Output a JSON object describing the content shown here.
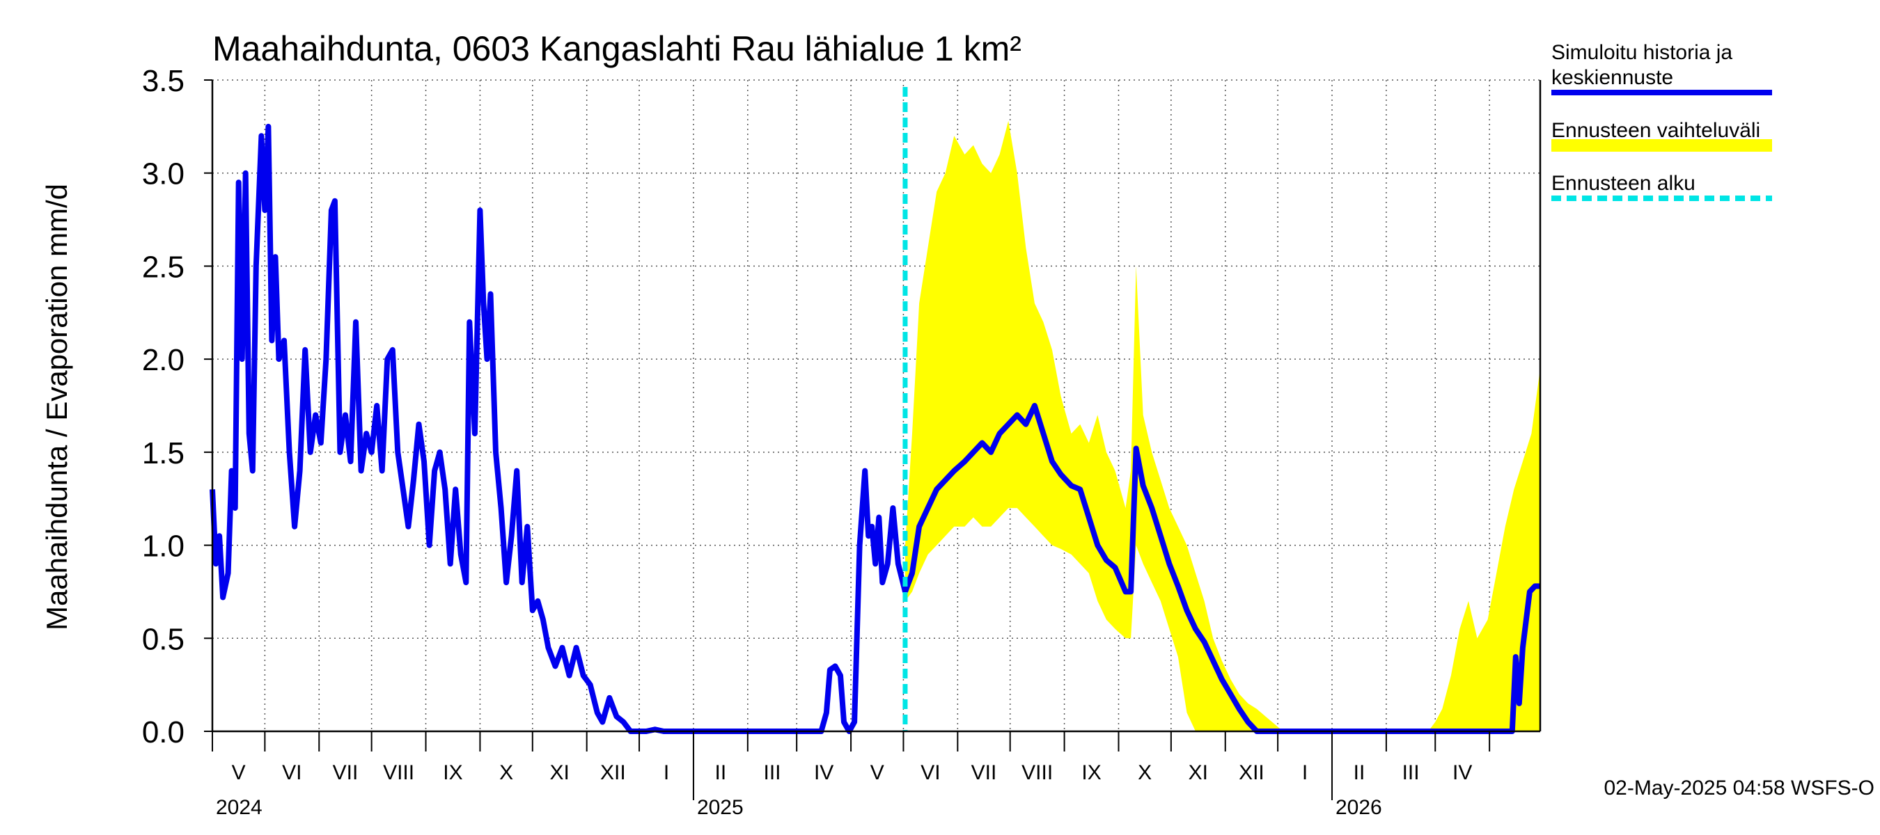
{
  "chart_data": {
    "type": "line",
    "title": "Maahaihdunta, 0603 Kangaslahti Rau lähialue 1 km²",
    "ylabel": "Maahaihdunta / Evaporation   mm/d",
    "ylim": [
      0,
      3.5
    ],
    "yticks": [
      "0.0",
      "0.5",
      "1.0",
      "1.5",
      "2.0",
      "2.5",
      "3.0",
      "3.5"
    ],
    "x_range": [
      "2024-04-01",
      "2026-04-30"
    ],
    "forecast_start": "2025-05-02",
    "months": [
      "V",
      "VI",
      "VII",
      "VIII",
      "IX",
      "X",
      "XI",
      "XII",
      "I",
      "II",
      "III",
      "IV",
      "V",
      "VI",
      "VII",
      "VIII",
      "IX",
      "X",
      "XI",
      "XII",
      "I",
      "II",
      "III",
      "IV"
    ],
    "years": [
      {
        "label": "2024",
        "date": "2024-04-01"
      },
      {
        "label": "2025",
        "date": "2025-01-01"
      },
      {
        "label": "2026",
        "date": "2026-01-01"
      }
    ],
    "legend": [
      {
        "label": "Simuloitu historia ja keskiennuste",
        "lines": [
          "Simuloitu historia ja",
          "keskiennuste"
        ],
        "color": "#0000ee",
        "style": "solid"
      },
      {
        "label": "Ennusteen vaihteluväli",
        "lines": [
          "Ennusteen vaihteluväli"
        ],
        "color": "#ffff00",
        "style": "band"
      },
      {
        "label": "Ennusteen alku",
        "lines": [
          "Ennusteen alku"
        ],
        "color": "#00e5e5",
        "style": "dashed"
      }
    ],
    "footer": "02-May-2025 04:58 WSFS-O",
    "series": [
      {
        "name": "Simuloitu historia ja keskiennuste",
        "points": [
          [
            "2024-04-01",
            1.3
          ],
          [
            "2024-04-03",
            0.9
          ],
          [
            "2024-04-05",
            1.05
          ],
          [
            "2024-04-07",
            0.72
          ],
          [
            "2024-04-10",
            0.85
          ],
          [
            "2024-04-12",
            1.4
          ],
          [
            "2024-04-14",
            1.2
          ],
          [
            "2024-04-16",
            2.95
          ],
          [
            "2024-04-18",
            2.0
          ],
          [
            "2024-04-20",
            3.0
          ],
          [
            "2024-04-22",
            1.6
          ],
          [
            "2024-04-24",
            1.4
          ],
          [
            "2024-04-26",
            2.5
          ],
          [
            "2024-04-29",
            3.2
          ],
          [
            "2024-05-01",
            2.8
          ],
          [
            "2024-05-03",
            3.25
          ],
          [
            "2024-05-05",
            2.1
          ],
          [
            "2024-05-07",
            2.55
          ],
          [
            "2024-05-09",
            2.0
          ],
          [
            "2024-05-12",
            2.1
          ],
          [
            "2024-05-15",
            1.5
          ],
          [
            "2024-05-18",
            1.1
          ],
          [
            "2024-05-21",
            1.4
          ],
          [
            "2024-05-24",
            2.05
          ],
          [
            "2024-05-27",
            1.5
          ],
          [
            "2024-05-30",
            1.7
          ],
          [
            "2024-06-02",
            1.55
          ],
          [
            "2024-06-05",
            2.0
          ],
          [
            "2024-06-08",
            2.8
          ],
          [
            "2024-06-10",
            2.85
          ],
          [
            "2024-06-13",
            1.5
          ],
          [
            "2024-06-16",
            1.7
          ],
          [
            "2024-06-19",
            1.45
          ],
          [
            "2024-06-22",
            2.2
          ],
          [
            "2024-06-25",
            1.4
          ],
          [
            "2024-06-28",
            1.6
          ],
          [
            "2024-07-01",
            1.5
          ],
          [
            "2024-07-04",
            1.75
          ],
          [
            "2024-07-07",
            1.4
          ],
          [
            "2024-07-10",
            2.0
          ],
          [
            "2024-07-13",
            2.05
          ],
          [
            "2024-07-16",
            1.5
          ],
          [
            "2024-07-19",
            1.3
          ],
          [
            "2024-07-22",
            1.1
          ],
          [
            "2024-07-25",
            1.35
          ],
          [
            "2024-07-28",
            1.65
          ],
          [
            "2024-07-31",
            1.45
          ],
          [
            "2024-08-03",
            1.0
          ],
          [
            "2024-08-06",
            1.4
          ],
          [
            "2024-08-09",
            1.5
          ],
          [
            "2024-08-12",
            1.3
          ],
          [
            "2024-08-15",
            0.9
          ],
          [
            "2024-08-18",
            1.3
          ],
          [
            "2024-08-21",
            0.95
          ],
          [
            "2024-08-24",
            0.8
          ],
          [
            "2024-08-26",
            2.2
          ],
          [
            "2024-08-29",
            1.6
          ],
          [
            "2024-09-01",
            2.8
          ],
          [
            "2024-09-03",
            2.3
          ],
          [
            "2024-09-05",
            2.0
          ],
          [
            "2024-09-07",
            2.35
          ],
          [
            "2024-09-10",
            1.5
          ],
          [
            "2024-09-13",
            1.2
          ],
          [
            "2024-09-16",
            0.8
          ],
          [
            "2024-09-19",
            1.05
          ],
          [
            "2024-09-22",
            1.4
          ],
          [
            "2024-09-25",
            0.8
          ],
          [
            "2024-09-28",
            1.1
          ],
          [
            "2024-10-01",
            0.65
          ],
          [
            "2024-10-04",
            0.7
          ],
          [
            "2024-10-07",
            0.6
          ],
          [
            "2024-10-10",
            0.45
          ],
          [
            "2024-10-14",
            0.35
          ],
          [
            "2024-10-18",
            0.45
          ],
          [
            "2024-10-22",
            0.3
          ],
          [
            "2024-10-26",
            0.45
          ],
          [
            "2024-10-30",
            0.3
          ],
          [
            "2024-11-03",
            0.25
          ],
          [
            "2024-11-07",
            0.1
          ],
          [
            "2024-11-10",
            0.05
          ],
          [
            "2024-11-14",
            0.18
          ],
          [
            "2024-11-18",
            0.08
          ],
          [
            "2024-11-22",
            0.05
          ],
          [
            "2024-11-26",
            0.0
          ],
          [
            "2024-12-05",
            0.0
          ],
          [
            "2024-12-10",
            0.01
          ],
          [
            "2024-12-15",
            0.0
          ],
          [
            "2025-03-10",
            0.0
          ],
          [
            "2025-03-15",
            0.0
          ],
          [
            "2025-03-18",
            0.1
          ],
          [
            "2025-03-20",
            0.33
          ],
          [
            "2025-03-23",
            0.35
          ],
          [
            "2025-03-26",
            0.3
          ],
          [
            "2025-03-28",
            0.05
          ],
          [
            "2025-03-31",
            0.0
          ],
          [
            "2025-04-03",
            0.05
          ],
          [
            "2025-04-06",
            1.0
          ],
          [
            "2025-04-09",
            1.4
          ],
          [
            "2025-04-11",
            1.05
          ],
          [
            "2025-04-13",
            1.1
          ],
          [
            "2025-04-15",
            0.9
          ],
          [
            "2025-04-17",
            1.15
          ],
          [
            "2025-04-19",
            0.8
          ],
          [
            "2025-04-22",
            0.9
          ],
          [
            "2025-04-25",
            1.2
          ],
          [
            "2025-04-28",
            0.9
          ],
          [
            "2025-05-02",
            0.75
          ],
          [
            "2025-05-06",
            0.85
          ],
          [
            "2025-05-10",
            1.1
          ],
          [
            "2025-05-15",
            1.2
          ],
          [
            "2025-05-20",
            1.3
          ],
          [
            "2025-05-25",
            1.35
          ],
          [
            "2025-05-30",
            1.4
          ],
          [
            "2025-06-05",
            1.45
          ],
          [
            "2025-06-10",
            1.5
          ],
          [
            "2025-06-15",
            1.55
          ],
          [
            "2025-06-20",
            1.5
          ],
          [
            "2025-06-25",
            1.6
          ],
          [
            "2025-06-30",
            1.65
          ],
          [
            "2025-07-05",
            1.7
          ],
          [
            "2025-07-10",
            1.65
          ],
          [
            "2025-07-15",
            1.75
          ],
          [
            "2025-07-20",
            1.6
          ],
          [
            "2025-07-25",
            1.45
          ],
          [
            "2025-07-30",
            1.38
          ],
          [
            "2025-08-05",
            1.32
          ],
          [
            "2025-08-10",
            1.3
          ],
          [
            "2025-08-15",
            1.15
          ],
          [
            "2025-08-20",
            1.0
          ],
          [
            "2025-08-25",
            0.92
          ],
          [
            "2025-08-30",
            0.88
          ],
          [
            "2025-09-05",
            0.75
          ],
          [
            "2025-09-08",
            0.75
          ],
          [
            "2025-09-11",
            1.52
          ],
          [
            "2025-09-15",
            1.32
          ],
          [
            "2025-09-20",
            1.2
          ],
          [
            "2025-09-25",
            1.05
          ],
          [
            "2025-09-30",
            0.9
          ],
          [
            "2025-10-05",
            0.78
          ],
          [
            "2025-10-10",
            0.65
          ],
          [
            "2025-10-15",
            0.55
          ],
          [
            "2025-10-20",
            0.48
          ],
          [
            "2025-10-25",
            0.38
          ],
          [
            "2025-10-30",
            0.28
          ],
          [
            "2025-11-04",
            0.2
          ],
          [
            "2025-11-09",
            0.12
          ],
          [
            "2025-11-14",
            0.05
          ],
          [
            "2025-11-19",
            0.0
          ],
          [
            "2026-04-14",
            0.0
          ],
          [
            "2026-04-16",
            0.4
          ],
          [
            "2026-04-18",
            0.15
          ],
          [
            "2026-04-20",
            0.45
          ],
          [
            "2026-04-22",
            0.6
          ],
          [
            "2026-04-24",
            0.75
          ],
          [
            "2026-04-27",
            0.78
          ],
          [
            "2026-04-30",
            0.78
          ]
        ]
      },
      {
        "name": "Ennusteen vaihteluväli",
        "band": [
          [
            "2025-05-02",
            0.7,
            1.0
          ],
          [
            "2025-05-06",
            0.75,
            1.6
          ],
          [
            "2025-05-10",
            0.85,
            2.3
          ],
          [
            "2025-05-15",
            0.95,
            2.6
          ],
          [
            "2025-05-20",
            1.0,
            2.9
          ],
          [
            "2025-05-25",
            1.05,
            3.0
          ],
          [
            "2025-05-30",
            1.1,
            3.2
          ],
          [
            "2025-06-05",
            1.1,
            3.1
          ],
          [
            "2025-06-10",
            1.15,
            3.15
          ],
          [
            "2025-06-15",
            1.1,
            3.05
          ],
          [
            "2025-06-20",
            1.1,
            3.0
          ],
          [
            "2025-06-25",
            1.15,
            3.1
          ],
          [
            "2025-06-30",
            1.2,
            3.28
          ],
          [
            "2025-07-05",
            1.2,
            3.0
          ],
          [
            "2025-07-10",
            1.15,
            2.6
          ],
          [
            "2025-07-15",
            1.1,
            2.3
          ],
          [
            "2025-07-20",
            1.05,
            2.2
          ],
          [
            "2025-07-25",
            1.0,
            2.05
          ],
          [
            "2025-07-30",
            0.98,
            1.8
          ],
          [
            "2025-08-05",
            0.95,
            1.6
          ],
          [
            "2025-08-10",
            0.9,
            1.65
          ],
          [
            "2025-08-15",
            0.85,
            1.55
          ],
          [
            "2025-08-20",
            0.7,
            1.7
          ],
          [
            "2025-08-25",
            0.6,
            1.5
          ],
          [
            "2025-08-30",
            0.55,
            1.4
          ],
          [
            "2025-09-05",
            0.5,
            1.2
          ],
          [
            "2025-09-08",
            0.5,
            1.4
          ],
          [
            "2025-09-11",
            1.0,
            2.5
          ],
          [
            "2025-09-15",
            0.9,
            1.7
          ],
          [
            "2025-09-20",
            0.8,
            1.5
          ],
          [
            "2025-09-25",
            0.7,
            1.35
          ],
          [
            "2025-09-30",
            0.55,
            1.2
          ],
          [
            "2025-10-05",
            0.4,
            1.1
          ],
          [
            "2025-10-10",
            0.1,
            1.0
          ],
          [
            "2025-10-15",
            0.0,
            0.85
          ],
          [
            "2025-10-20",
            0.0,
            0.7
          ],
          [
            "2025-10-25",
            0.0,
            0.5
          ],
          [
            "2025-10-30",
            0.0,
            0.38
          ],
          [
            "2025-11-04",
            0.0,
            0.28
          ],
          [
            "2025-11-09",
            0.0,
            0.2
          ],
          [
            "2025-11-14",
            0.0,
            0.15
          ],
          [
            "2025-11-19",
            0.0,
            0.12
          ],
          [
            "2025-11-24",
            0.0,
            0.08
          ],
          [
            "2025-11-29",
            0.0,
            0.04
          ],
          [
            "2025-12-04",
            0.0,
            0.0
          ],
          [
            "2026-02-25",
            0.0,
            0.0
          ],
          [
            "2026-03-01",
            0.0,
            0.05
          ],
          [
            "2026-03-05",
            0.0,
            0.12
          ],
          [
            "2026-03-10",
            0.0,
            0.3
          ],
          [
            "2026-03-15",
            0.0,
            0.55
          ],
          [
            "2026-03-20",
            0.0,
            0.7
          ],
          [
            "2026-03-25",
            0.0,
            0.5
          ],
          [
            "2026-03-31",
            0.0,
            0.6
          ],
          [
            "2026-04-05",
            0.0,
            0.85
          ],
          [
            "2026-04-10",
            0.0,
            1.1
          ],
          [
            "2026-04-15",
            0.0,
            1.3
          ],
          [
            "2026-04-20",
            0.0,
            1.45
          ],
          [
            "2026-04-25",
            0.0,
            1.6
          ],
          [
            "2026-04-30",
            0.0,
            1.95
          ]
        ]
      }
    ]
  }
}
